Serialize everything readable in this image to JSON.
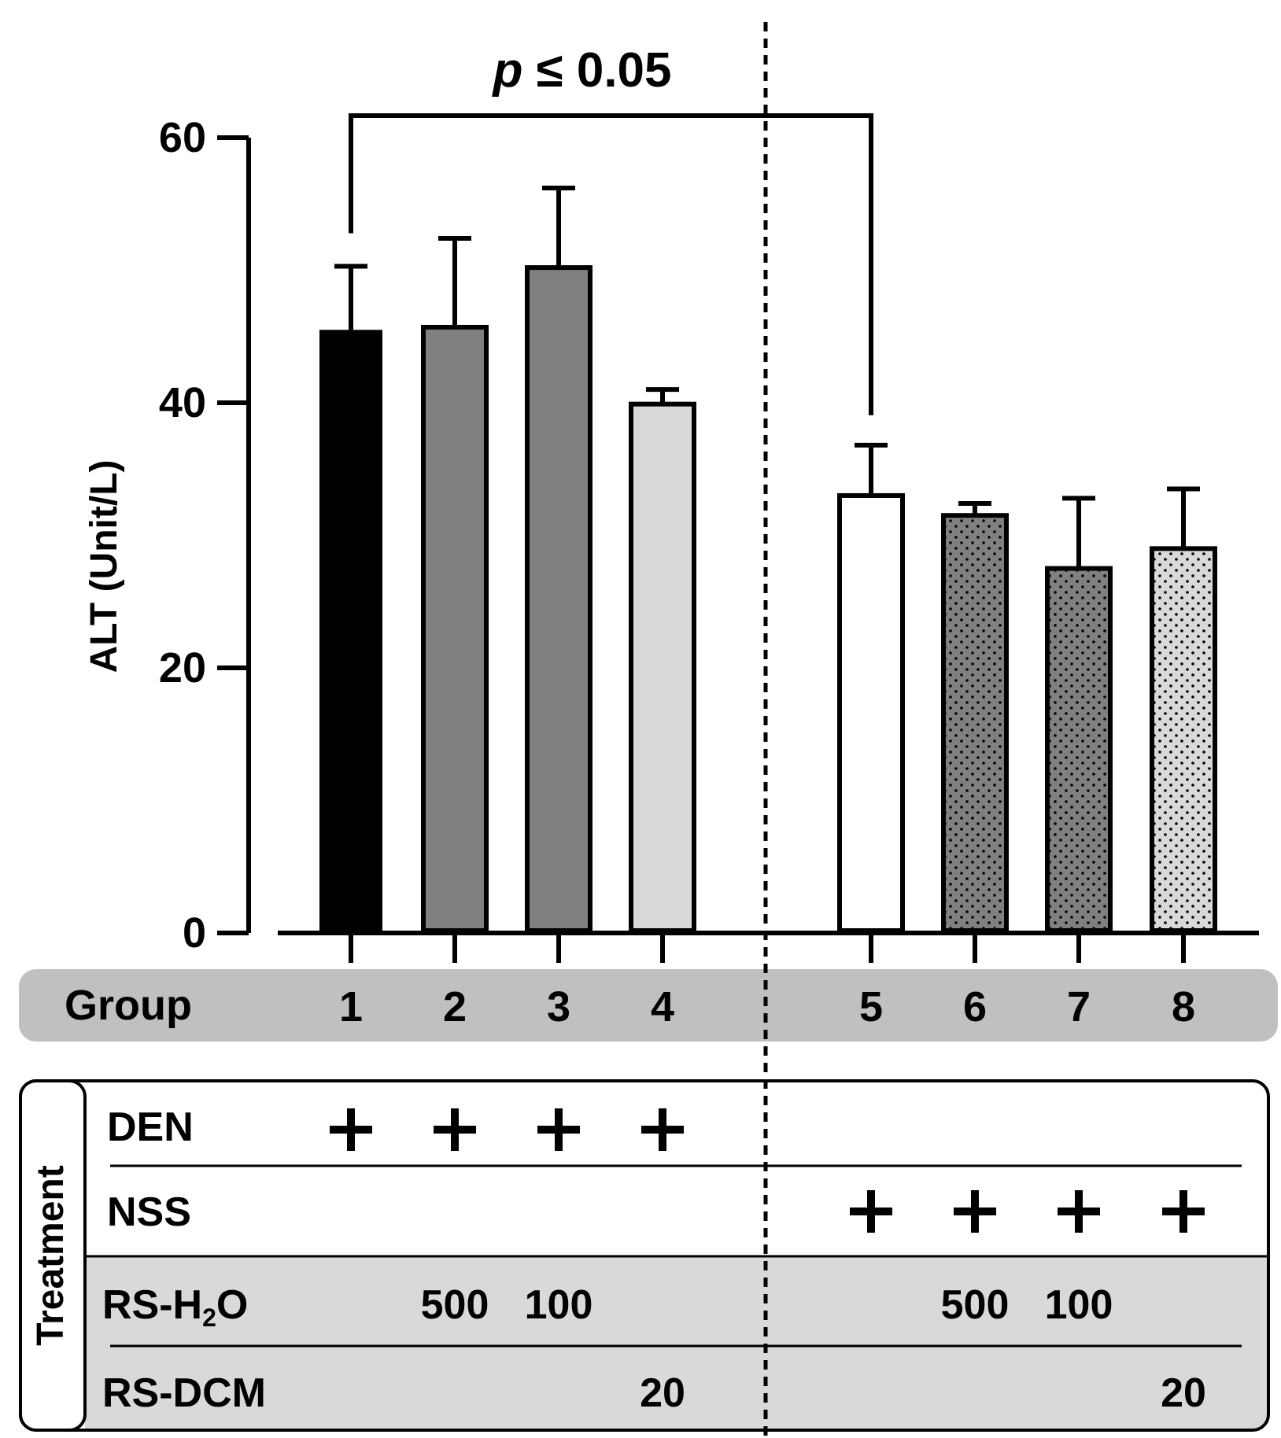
{
  "chart_data": {
    "type": "bar",
    "ylabel": "ALT (Unit/L)",
    "ylim": [
      0,
      60
    ],
    "yticks": [
      "0",
      "20",
      "40",
      "60"
    ],
    "categories": [
      "1",
      "2",
      "3",
      "4",
      "5",
      "6",
      "7",
      "8"
    ],
    "values": [
      45.5,
      45.7,
      50.2,
      39.9,
      33.0,
      31.5,
      27.5,
      29.0
    ],
    "errors": [
      4.8,
      6.7,
      6.0,
      1.1,
      3.8,
      0.9,
      5.3,
      4.5
    ],
    "fills": [
      "#000000",
      "#808080",
      "#808080",
      "#d9d9d9",
      "#ffffff",
      "#808080",
      "#808080",
      "#d9d9d9"
    ],
    "patterns": [
      "none",
      "none",
      "none",
      "none",
      "none",
      "dots",
      "dots",
      "dots"
    ],
    "significance": {
      "label_italic": "p",
      "label_rest": " ≤ 0.05",
      "from_group": 1,
      "to_group": 5
    },
    "group_row_label": "Group",
    "treatment": {
      "title": "Treatment",
      "rows": [
        {
          "label": "DEN",
          "cells": [
            "+",
            "+",
            "+",
            "+",
            "",
            "",
            "",
            ""
          ]
        },
        {
          "label": "NSS",
          "cells": [
            "",
            "",
            "",
            "",
            "+",
            "+",
            "+",
            "+"
          ]
        },
        {
          "label_main": "RS-H",
          "label_sub": "2",
          "label_tail": "O",
          "cells": [
            "",
            "500",
            "100",
            "",
            "",
            "500",
            "100",
            ""
          ]
        },
        {
          "label": "RS-DCM",
          "cells": [
            "",
            "",
            "",
            "20",
            "",
            "",
            "",
            "20"
          ]
        }
      ]
    }
  }
}
